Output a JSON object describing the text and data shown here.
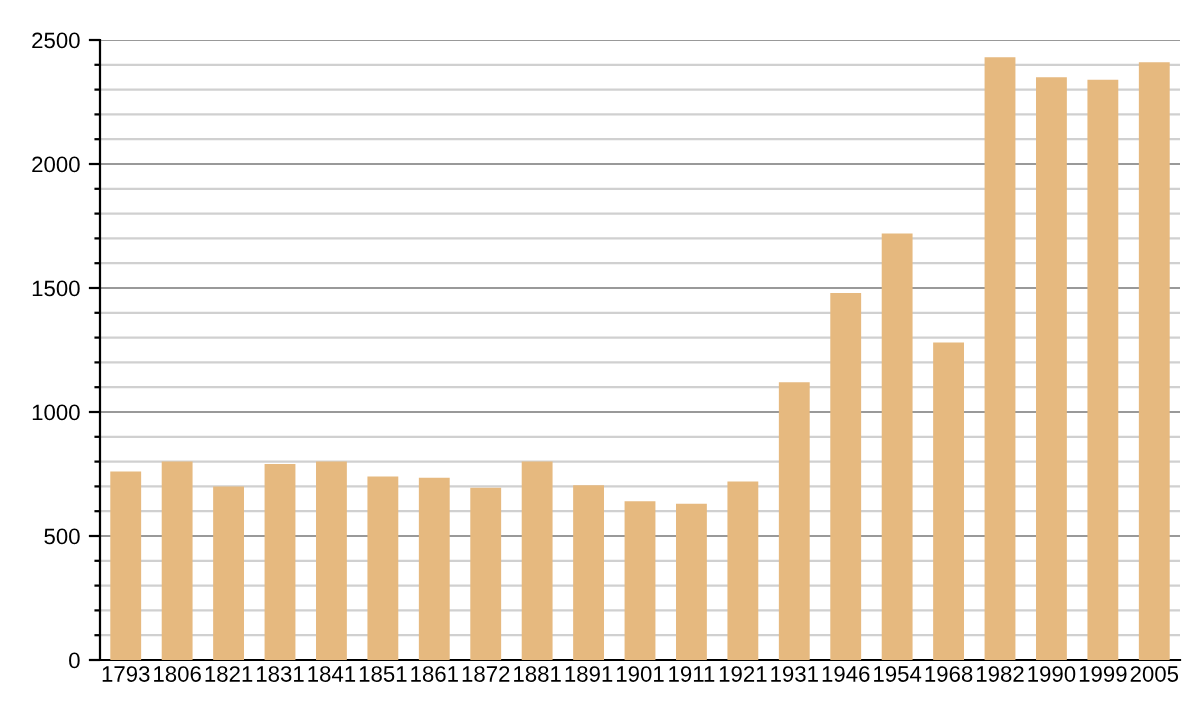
{
  "chart_data": {
    "type": "bar",
    "categories": [
      "1793",
      "1806",
      "1821",
      "1831",
      "1841",
      "1851",
      "1861",
      "1872",
      "1881",
      "1891",
      "1901",
      "1911",
      "1921",
      "1931",
      "1946",
      "1954",
      "1968",
      "1982",
      "1990",
      "1999",
      "2005"
    ],
    "values": [
      760,
      800,
      700,
      790,
      800,
      740,
      735,
      695,
      800,
      705,
      640,
      630,
      720,
      1120,
      1480,
      1720,
      1280,
      2430,
      2350,
      2340,
      2410
    ],
    "color": "#e6b97f",
    "ylim": [
      0,
      2500
    ],
    "yticks": [
      0,
      {
        "value": 100,
        "label": null
      },
      {
        "value": 200,
        "label": null
      },
      {
        "value": 300,
        "label": null
      },
      {
        "value": 400,
        "label": null
      },
      500,
      {
        "value": 600,
        "label": null
      },
      {
        "value": 700,
        "label": null
      },
      {
        "value": 800,
        "label": null
      },
      {
        "value": 900,
        "label": null
      },
      1000,
      {
        "value": 1100,
        "label": null
      },
      {
        "value": 1200,
        "label": null
      },
      {
        "value": 1300,
        "label": null
      },
      {
        "value": 1400,
        "label": null
      },
      1500,
      {
        "value": 1600,
        "label": null
      },
      {
        "value": 1700,
        "label": null
      },
      {
        "value": 1800,
        "label": null
      },
      {
        "value": 1900,
        "label": null
      },
      2000,
      {
        "value": 2100,
        "label": null
      },
      {
        "value": 2200,
        "label": null
      },
      {
        "value": 2300,
        "label": null
      },
      {
        "value": 2400,
        "label": null
      },
      2500
    ],
    "grid": "y"
  }
}
